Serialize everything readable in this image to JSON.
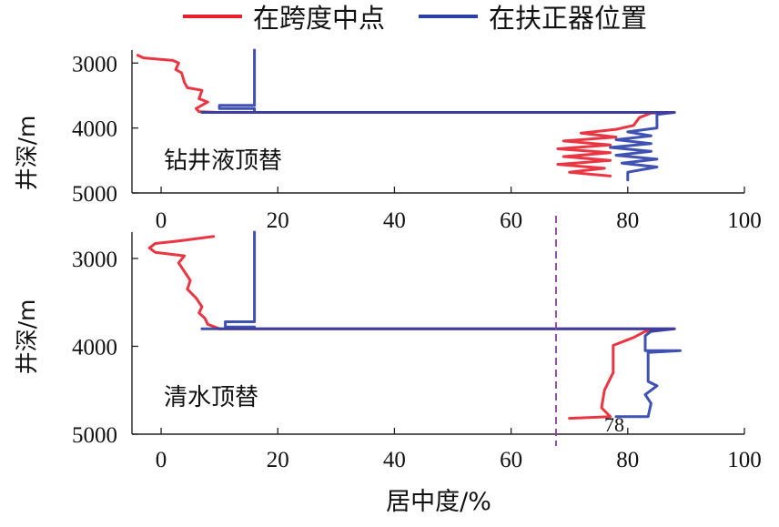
{
  "legend": {
    "red_label": "在跨度中点",
    "blue_label": "在扶正器位置"
  },
  "colors": {
    "red": "#e8202e",
    "blue": "#2a3fa8",
    "marker": "#8a3fa0"
  },
  "chart_data": {
    "type": "line",
    "xlabel": "居中度/%",
    "marker_value": 70,
    "panels": [
      {
        "label": "钻井液顶替",
        "ylabel": "井深/m",
        "xlim": [
          -5,
          100
        ],
        "ylim": [
          2800,
          5000
        ],
        "xticks": [
          "0",
          "20",
          "40",
          "60",
          "80",
          "100"
        ],
        "yticks": [
          "3000",
          "4000",
          "5000"
        ],
        "series": [
          {
            "name": "在跨度中点",
            "points": [
              [
                -4,
                2880
              ],
              [
                -3,
                2920
              ],
              [
                2,
                2960
              ],
              [
                3,
                3000
              ],
              [
                2.5,
                3100
              ],
              [
                3.5,
                3150
              ],
              [
                4,
                3300
              ],
              [
                4.5,
                3380
              ],
              [
                7,
                3420
              ],
              [
                6.5,
                3550
              ],
              [
                8,
                3600
              ],
              [
                6,
                3700
              ],
              [
                6.5,
                3750
              ],
              [
                10,
                3760
              ],
              [
                88,
                3760
              ],
              [
                84,
                3770
              ],
              [
                82,
                3840
              ],
              [
                81,
                3960
              ],
              [
                78,
                4020
              ],
              [
                72,
                4080
              ],
              [
                78,
                4140
              ],
              [
                69,
                4200
              ],
              [
                77,
                4260
              ],
              [
                68,
                4320
              ],
              [
                77,
                4380
              ],
              [
                69,
                4440
              ],
              [
                77,
                4500
              ],
              [
                68,
                4560
              ],
              [
                76,
                4620
              ],
              [
                70,
                4680
              ],
              [
                77,
                4740
              ]
            ]
          },
          {
            "name": "在扶正器位置",
            "points": [
              [
                16,
                2800
              ],
              [
                16,
                3650
              ],
              [
                10,
                3650
              ],
              [
                10,
                3700
              ],
              [
                16,
                3700
              ],
              [
                16,
                3760
              ],
              [
                7,
                3760
              ],
              [
                88,
                3760
              ],
              [
                85,
                3790
              ],
              [
                85,
                4000
              ],
              [
                80,
                4060
              ],
              [
                84,
                4120
              ],
              [
                78,
                4180
              ],
              [
                84,
                4240
              ],
              [
                77,
                4300
              ],
              [
                84,
                4360
              ],
              [
                78,
                4420
              ],
              [
                85,
                4480
              ],
              [
                79,
                4540
              ],
              [
                85,
                4600
              ],
              [
                80,
                4680
              ],
              [
                80,
                4800
              ]
            ]
          }
        ]
      },
      {
        "label": "清水顶替",
        "ylabel": "井深/m",
        "xlim": [
          -5,
          100
        ],
        "ylim": [
          2700,
          5000
        ],
        "xticks": [
          "0",
          "20",
          "40",
          "60",
          "80",
          "100"
        ],
        "yticks": [
          "3000",
          "4000",
          "5000"
        ],
        "series": [
          {
            "name": "在跨度中点",
            "points": [
              [
                9,
                2750
              ],
              [
                3,
                2800
              ],
              [
                -1,
                2830
              ],
              [
                -2,
                2880
              ],
              [
                -1,
                2930
              ],
              [
                4,
                2970
              ],
              [
                3,
                3050
              ],
              [
                4,
                3150
              ],
              [
                5,
                3250
              ],
              [
                4.5,
                3350
              ],
              [
                6,
                3450
              ],
              [
                7,
                3550
              ],
              [
                6.5,
                3620
              ],
              [
                7.5,
                3680
              ],
              [
                8,
                3750
              ],
              [
                10,
                3800
              ],
              [
                88,
                3800
              ],
              [
                83,
                3830
              ],
              [
                81,
                3900
              ],
              [
                77.5,
                3990
              ],
              [
                77.5,
                4300
              ],
              [
                76,
                4500
              ],
              [
                75.5,
                4700
              ],
              [
                77,
                4800
              ],
              [
                70,
                4820
              ]
            ]
          },
          {
            "name": "在扶正器位置",
            "points": [
              [
                16,
                2700
              ],
              [
                16,
                3720
              ],
              [
                11,
                3720
              ],
              [
                11,
                3780
              ],
              [
                16,
                3780
              ],
              [
                16,
                3800
              ],
              [
                7,
                3800
              ],
              [
                88,
                3800
              ],
              [
                84,
                3830
              ],
              [
                83,
                3880
              ],
              [
                83,
                4050
              ],
              [
                89,
                4050
              ],
              [
                83.5,
                4070
              ],
              [
                83.5,
                4400
              ],
              [
                85,
                4450
              ],
              [
                83,
                4550
              ],
              [
                84,
                4650
              ],
              [
                83.5,
                4800
              ],
              [
                78,
                4800
              ]
            ]
          }
        ]
      }
    ],
    "annotations": [
      {
        "panel": 1,
        "text": "78",
        "x": 78
      }
    ]
  }
}
